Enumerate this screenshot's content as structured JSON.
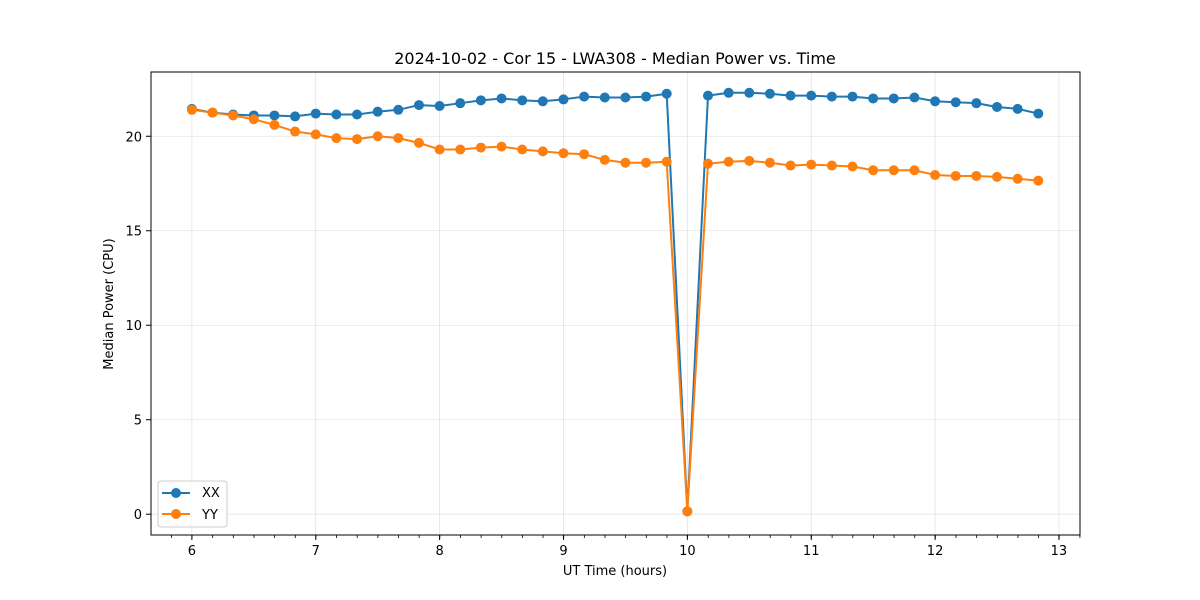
{
  "chart_data": {
    "type": "line",
    "title": "2024-10-02 - Cor 15 - LWA308 - Median Power vs. Time",
    "xlabel": "UT Time (hours)",
    "ylabel": "Median Power (CPU)",
    "xlim": [
      5.67,
      13.17
    ],
    "ylim": [
      -1.1,
      23.4
    ],
    "xticks": [
      6,
      7,
      8,
      9,
      10,
      11,
      12,
      13
    ],
    "yticks": [
      0,
      5,
      10,
      15,
      20
    ],
    "xminor_step": 0.1667,
    "grid": true,
    "legend_position": "lower-left",
    "x": [
      6.0,
      6.1667,
      6.3333,
      6.5,
      6.6667,
      6.8333,
      7.0,
      7.1667,
      7.3333,
      7.5,
      7.6667,
      7.8333,
      8.0,
      8.1667,
      8.3333,
      8.5,
      8.6667,
      8.8333,
      9.0,
      9.1667,
      9.3333,
      9.5,
      9.6667,
      9.8333,
      10.0,
      10.1667,
      10.3333,
      10.5,
      10.6667,
      10.8333,
      11.0,
      11.1667,
      11.3333,
      11.5,
      11.6667,
      11.8333,
      12.0,
      12.1667,
      12.3333,
      12.5,
      12.6667,
      12.8333
    ],
    "series": [
      {
        "name": "XX",
        "color": "#1f77b4",
        "values": [
          21.45,
          21.25,
          21.15,
          21.1,
          21.1,
          21.05,
          21.2,
          21.15,
          21.15,
          21.3,
          21.4,
          21.65,
          21.6,
          21.75,
          21.9,
          22.0,
          21.9,
          21.85,
          21.95,
          22.1,
          22.05,
          22.05,
          22.1,
          22.25,
          0.15,
          22.15,
          22.3,
          22.3,
          22.25,
          22.15,
          22.15,
          22.1,
          22.1,
          22.0,
          22.0,
          22.05,
          21.85,
          21.8,
          21.75,
          21.55,
          21.45,
          21.2
        ]
      },
      {
        "name": "YY",
        "color": "#ff7f0e",
        "values": [
          21.4,
          21.25,
          21.1,
          20.9,
          20.6,
          20.25,
          20.1,
          19.9,
          19.85,
          20.0,
          19.9,
          19.65,
          19.3,
          19.3,
          19.4,
          19.45,
          19.3,
          19.2,
          19.1,
          19.05,
          18.75,
          18.6,
          18.6,
          18.65,
          0.15,
          18.55,
          18.65,
          18.7,
          18.6,
          18.45,
          18.5,
          18.45,
          18.4,
          18.2,
          18.2,
          18.2,
          17.95,
          17.9,
          17.9,
          17.85,
          17.75,
          17.65
        ]
      }
    ]
  }
}
